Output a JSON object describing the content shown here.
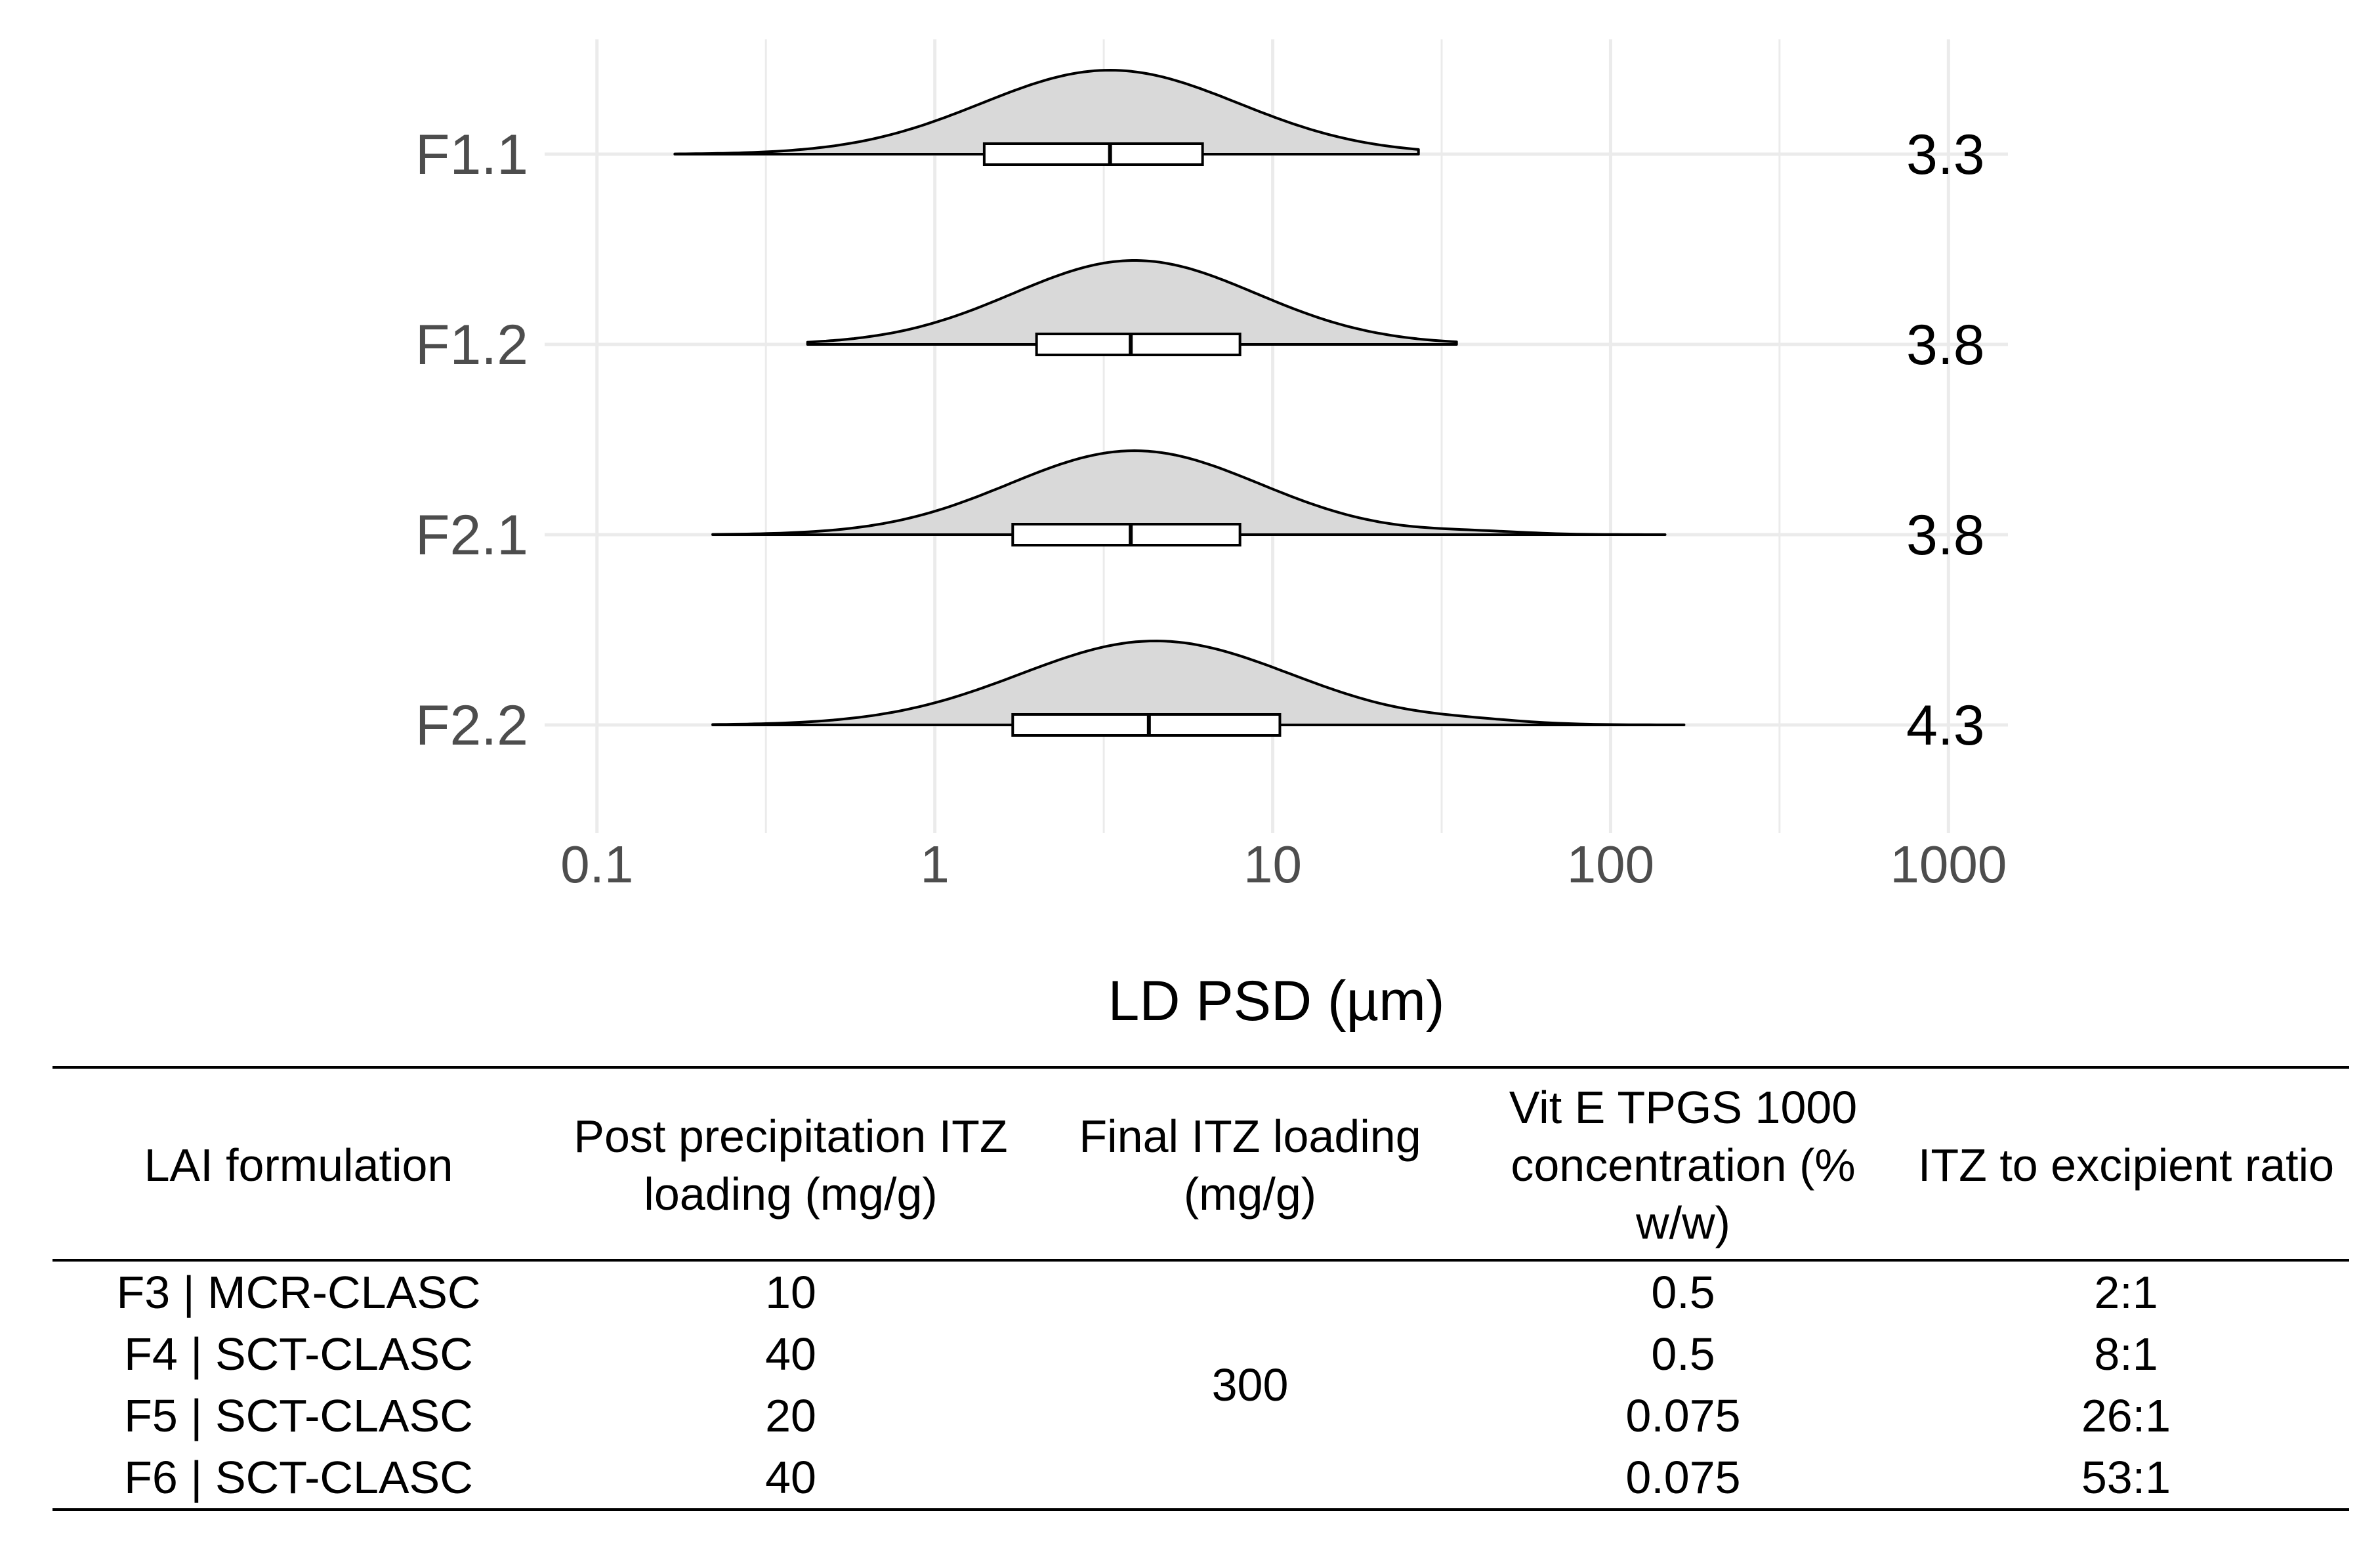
{
  "chart_data": {
    "type": "violin-boxplot",
    "orientation": "horizontal",
    "x_scale": "log10",
    "xlabel": "LD PSD (µm)",
    "xlim": [
      0.07,
      1500
    ],
    "x_ticks": [
      {
        "value": 0.1,
        "label": "0.1"
      },
      {
        "value": 1,
        "label": "1"
      },
      {
        "value": 10,
        "label": "10"
      },
      {
        "value": 100,
        "label": "100"
      },
      {
        "value": 1000,
        "label": "1000"
      }
    ],
    "series": [
      {
        "name": "F1.1",
        "median_label": "3.3",
        "min": 0.17,
        "q1": 1.4,
        "median": 3.3,
        "q3": 6.2,
        "max": 27,
        "density_peak": 3.3,
        "spread": 0.38,
        "tail": 0
      },
      {
        "name": "F1.2",
        "median_label": "3.8",
        "min": 0.42,
        "q1": 2.0,
        "median": 3.8,
        "q3": 8.0,
        "max": 35,
        "density_peak": 3.9,
        "spread": 0.36,
        "tail": 0
      },
      {
        "name": "F2.1",
        "median_label": "3.8",
        "min": 0.22,
        "q1": 1.7,
        "median": 3.8,
        "q3": 8.0,
        "max": 145,
        "density_peak": 3.9,
        "spread": 0.37,
        "tail": 40
      },
      {
        "name": "F2.2",
        "median_label": "4.3",
        "min": 0.22,
        "q1": 1.7,
        "median": 4.3,
        "q3": 10.5,
        "max": 165,
        "density_peak": 4.5,
        "spread": 0.4,
        "tail": 40
      }
    ],
    "fill_color": "#d9d9d9",
    "line_color": "#000000",
    "grid": true,
    "grid_color": "#ebebeb"
  },
  "table": {
    "headers": [
      "LAI formulation",
      "Post precipitation ITZ loading (mg/g)",
      "Final ITZ loading (mg/g)",
      "Vit E TPGS 1000 concentration (% w/w)",
      "ITZ to excipient ratio"
    ],
    "final_itz_loading_merged": "300",
    "rows": [
      {
        "formulation": "F3 | MCR-CLASC",
        "post_precip": "10",
        "vit_e": "0.5",
        "ratio": "2:1"
      },
      {
        "formulation": "F4 | SCT-CLASC",
        "post_precip": "40",
        "vit_e": "0.5",
        "ratio": "8:1"
      },
      {
        "formulation": "F5 | SCT-CLASC",
        "post_precip": "20",
        "vit_e": "0.075",
        "ratio": "26:1"
      },
      {
        "formulation": "F6 | SCT-CLASC",
        "post_precip": "40",
        "vit_e": "0.075",
        "ratio": "53:1"
      }
    ]
  }
}
